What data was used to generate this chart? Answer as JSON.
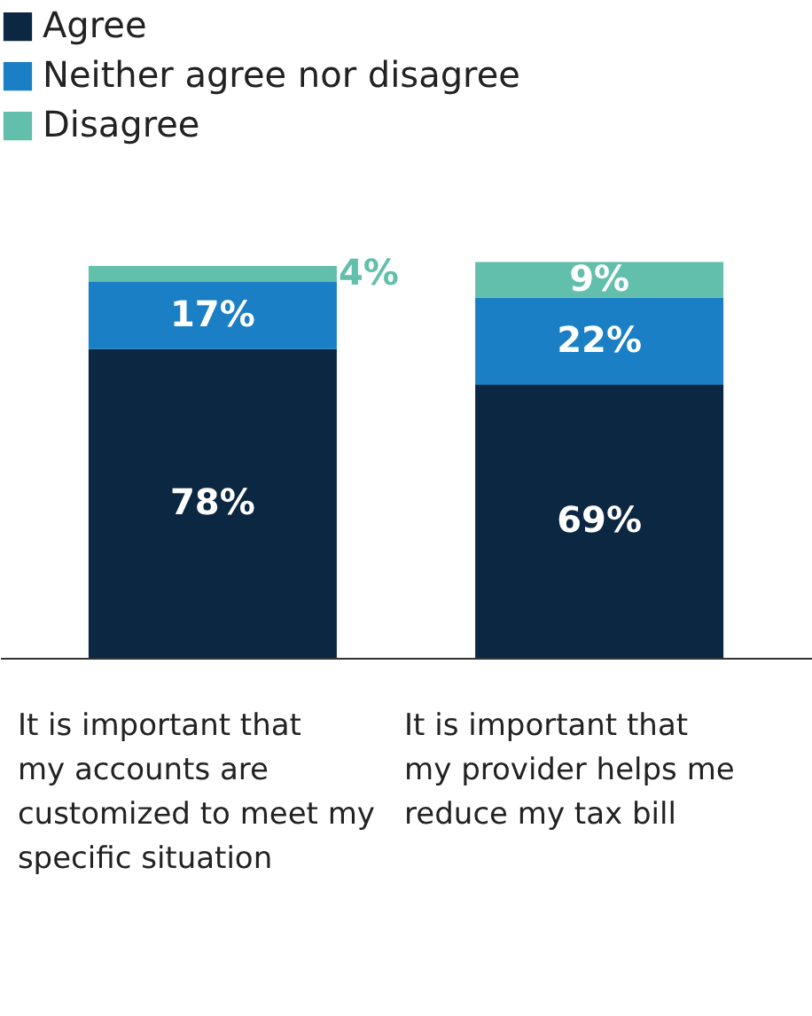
{
  "chart_data": {
    "type": "bar",
    "stacked": true,
    "legend": "top left",
    "grid": false,
    "categories": [
      "It is important that my accounts are customized to meet my specific situation",
      "It is important that my provider helps me reduce my tax bill"
    ],
    "series": [
      {
        "name": "Agree",
        "color": "#0b2741",
        "values": [
          78,
          69
        ],
        "value_labels": [
          "78%",
          "69%"
        ]
      },
      {
        "name": "Neither agree nor disagree",
        "color": "#1a7fc4",
        "values": [
          17,
          22
        ],
        "value_labels": [
          "17%",
          "22%"
        ]
      },
      {
        "name": "Disagree",
        "color": "#62bfac",
        "values": [
          4,
          9
        ],
        "value_labels": [
          "4%",
          "9%"
        ]
      }
    ]
  }
}
